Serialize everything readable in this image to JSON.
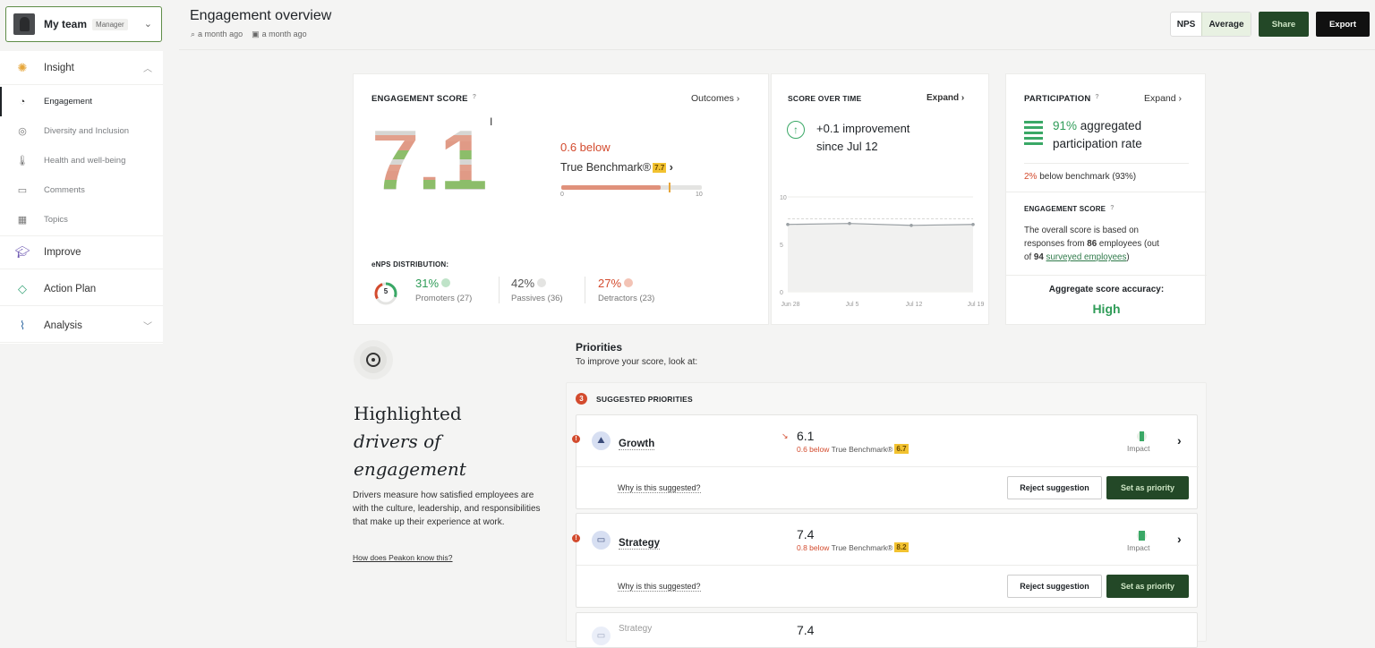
{
  "team": {
    "name": "My team",
    "badge": "Manager"
  },
  "sidebar": {
    "insight": "Insight",
    "items": [
      {
        "label": "Engagement",
        "icon": "gauge-icon"
      },
      {
        "label": "Diversity and Inclusion",
        "icon": "globe-icon"
      },
      {
        "label": "Health and well-being",
        "icon": "thermometer-icon"
      },
      {
        "label": "Comments",
        "icon": "comment-icon"
      },
      {
        "label": "Topics",
        "icon": "topics-icon"
      }
    ],
    "improve": "Improve",
    "action_plan": "Action Plan",
    "analysis": "Analysis"
  },
  "header": {
    "title": "Engagement overview",
    "meta1": "a month ago",
    "meta2": "a month ago",
    "toggle_nps": "NPS",
    "toggle_avg": "Average",
    "share": "Share",
    "export": "Export"
  },
  "engagement": {
    "label": "ENGAGEMENT SCORE",
    "q": "?",
    "outcomes": "Outcomes",
    "score": "7.1",
    "below": "0.6 below",
    "benchmark": "True Benchmark®",
    "bench_value": "7.7",
    "tick_min": "0",
    "tick_max": "10",
    "bar_fraction": 0.71,
    "bench_fraction": 0.77,
    "enps_label": "eNPS DISTRIBUTION:",
    "enps_value": "5",
    "promoters_pct": "31%",
    "promoters_lbl": "Promoters (27)",
    "passives_pct": "42%",
    "passives_lbl": "Passives (36)",
    "detractors_pct": "27%",
    "detractors_lbl": "Detractors (23)"
  },
  "score_time": {
    "label": "SCORE OVER TIME",
    "expand": "Expand",
    "improvement": "+0.1 improvement",
    "since": "since Jul 12",
    "y_ticks": [
      "10",
      "5",
      "0"
    ]
  },
  "chart_data": {
    "type": "line",
    "categories": [
      "Jun 28",
      "Jul 5",
      "Jul 12",
      "Jul 19"
    ],
    "series": [
      {
        "values": [
          7.1,
          7.2,
          7.0,
          7.1
        ]
      }
    ],
    "benchmark": 7.7,
    "ylim": [
      0,
      10
    ]
  },
  "participation": {
    "label": "PARTICIPATION",
    "q": "?",
    "expand": "Expand",
    "pct": "91%",
    "text1": "aggregated",
    "text2": "participation rate",
    "below_pct": "2%",
    "below_text": "below benchmark (93%)",
    "eng_label": "ENGAGEMENT SCORE",
    "desc1": "The overall score is based on",
    "desc2a": "responses from ",
    "desc2b": "86",
    "desc2c": " employees (out",
    "desc3a": "of ",
    "desc3b": "94",
    "desc3c": "surveyed employees",
    "desc3d": ")",
    "accuracy_label": "Aggregate score accuracy:",
    "accuracy_value": "High"
  },
  "drivers": {
    "title1": "Highlighted",
    "title2": "drivers of",
    "title3": "engagement",
    "body": "Drivers measure how satisfied employees are with the culture, leadership, and responsibilities that make up their experience at work.",
    "link": "How does Peakon know this?"
  },
  "priorities": {
    "title": "Priorities",
    "subtitle": "To improve your score, look at:",
    "count": "3",
    "suggested": "SUGGESTED PRIORITIES",
    "items": [
      {
        "name": "Growth",
        "score": "6.1",
        "below": "0.6 below",
        "bench": "True Benchmark®",
        "bench_value": "6.7",
        "impact": "Impact",
        "why": "Why is this suggested?",
        "reject": "Reject suggestion",
        "set": "Set as priority"
      },
      {
        "name": "Strategy",
        "score": "7.4",
        "below": "0.8 below",
        "bench": "True Benchmark®",
        "bench_value": "8.2",
        "impact": "Impact",
        "why": "Why is this suggested?",
        "reject": "Reject suggestion",
        "set": "Set as priority"
      },
      {
        "name": "Strategy",
        "score": "7.4"
      }
    ]
  }
}
